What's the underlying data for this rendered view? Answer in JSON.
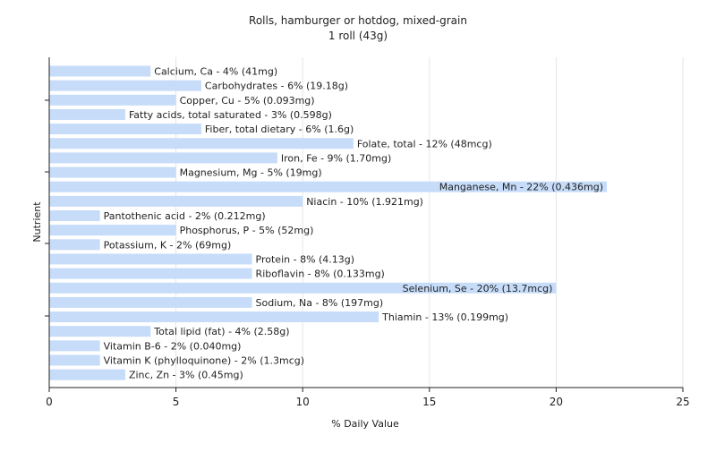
{
  "chart_data": {
    "type": "bar",
    "orientation": "horizontal",
    "title": "Rolls, hamburger or hotdog, mixed-grain",
    "subtitle": "1 roll (43g)",
    "xlabel": "% Daily Value",
    "ylabel": "Nutrient",
    "xlim": [
      0,
      25
    ],
    "xticks": [
      0,
      5,
      10,
      15,
      20,
      25
    ],
    "grid": true,
    "bar_color": "#c6dcf9",
    "categories": [
      "Calcium, Ca",
      "Carbohydrates",
      "Copper, Cu",
      "Fatty acids, total saturated",
      "Fiber, total dietary",
      "Folate, total",
      "Iron, Fe",
      "Magnesium, Mg",
      "Manganese, Mn",
      "Niacin",
      "Pantothenic acid",
      "Phosphorus, P",
      "Potassium, K",
      "Protein",
      "Riboflavin",
      "Selenium, Se",
      "Sodium, Na",
      "Thiamin",
      "Total lipid (fat)",
      "Vitamin B-6",
      "Vitamin K (phylloquinone)",
      "Zinc, Zn"
    ],
    "values": [
      4,
      6,
      5,
      3,
      6,
      12,
      9,
      5,
      22,
      10,
      2,
      5,
      2,
      8,
      8,
      20,
      8,
      13,
      4,
      2,
      2,
      3
    ],
    "labels": [
      "Calcium, Ca - 4% (41mg)",
      "Carbohydrates - 6% (19.18g)",
      "Copper, Cu - 5% (0.093mg)",
      "Fatty acids, total saturated - 3% (0.598g)",
      "Fiber, total dietary - 6% (1.6g)",
      "Folate, total - 12% (48mcg)",
      "Iron, Fe - 9% (1.70mg)",
      "Magnesium, Mg - 5% (19mg)",
      "Manganese, Mn - 22% (0.436mg)",
      "Niacin - 10% (1.921mg)",
      "Pantothenic acid - 2% (0.212mg)",
      "Phosphorus, P - 5% (52mg)",
      "Potassium, K - 2% (69mg)",
      "Protein - 8% (4.13g)",
      "Riboflavin - 8% (0.133mg)",
      "Selenium, Se - 20% (13.7mcg)",
      "Sodium, Na - 8% (197mg)",
      "Thiamin - 13% (0.199mg)",
      "Total lipid (fat) - 4% (2.58g)",
      "Vitamin B-6 - 2% (0.040mg)",
      "Vitamin K (phylloquinone) - 2% (1.3mcg)",
      "Zinc, Zn - 3% (0.45mg)"
    ]
  }
}
